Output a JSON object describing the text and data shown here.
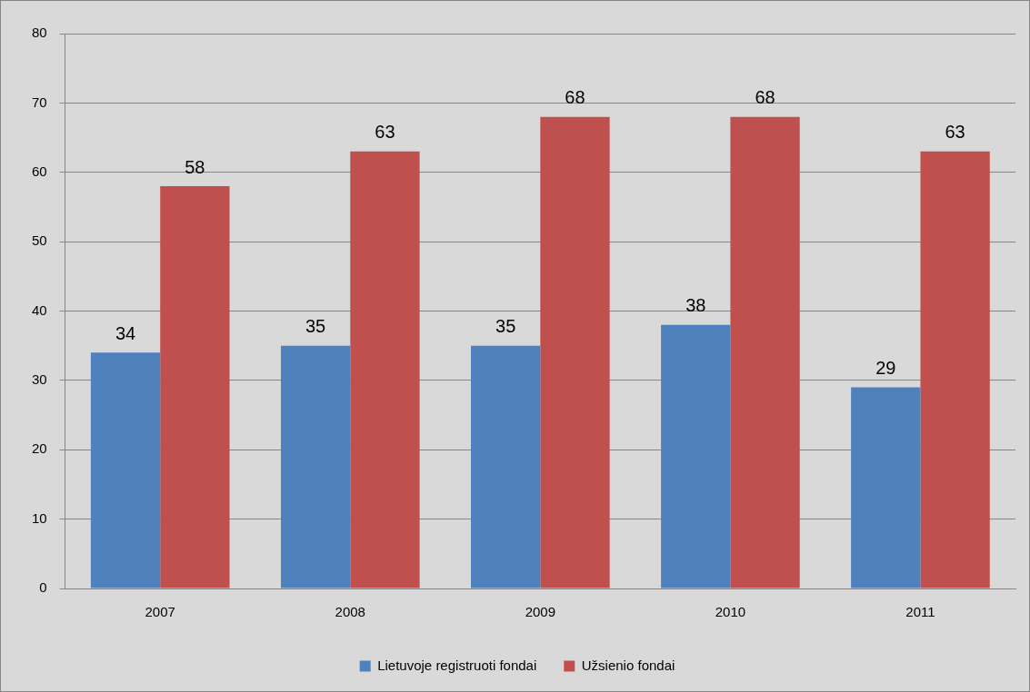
{
  "chart_data": {
    "type": "bar",
    "categories": [
      "2007",
      "2008",
      "2009",
      "2010",
      "2011"
    ],
    "series": [
      {
        "name": "Lietuvoje registruoti fondai",
        "color": "#4f81bd",
        "values": [
          34,
          35,
          35,
          38,
          29
        ]
      },
      {
        "name": "Užsienio fondai",
        "color": "#c0504d",
        "values": [
          58,
          63,
          68,
          68,
          63
        ]
      }
    ],
    "ylim": [
      0,
      80
    ],
    "yticks": [
      0,
      10,
      20,
      30,
      40,
      50,
      60,
      70,
      80
    ],
    "grid": "y",
    "legend": "bottom",
    "data_labels": true
  }
}
